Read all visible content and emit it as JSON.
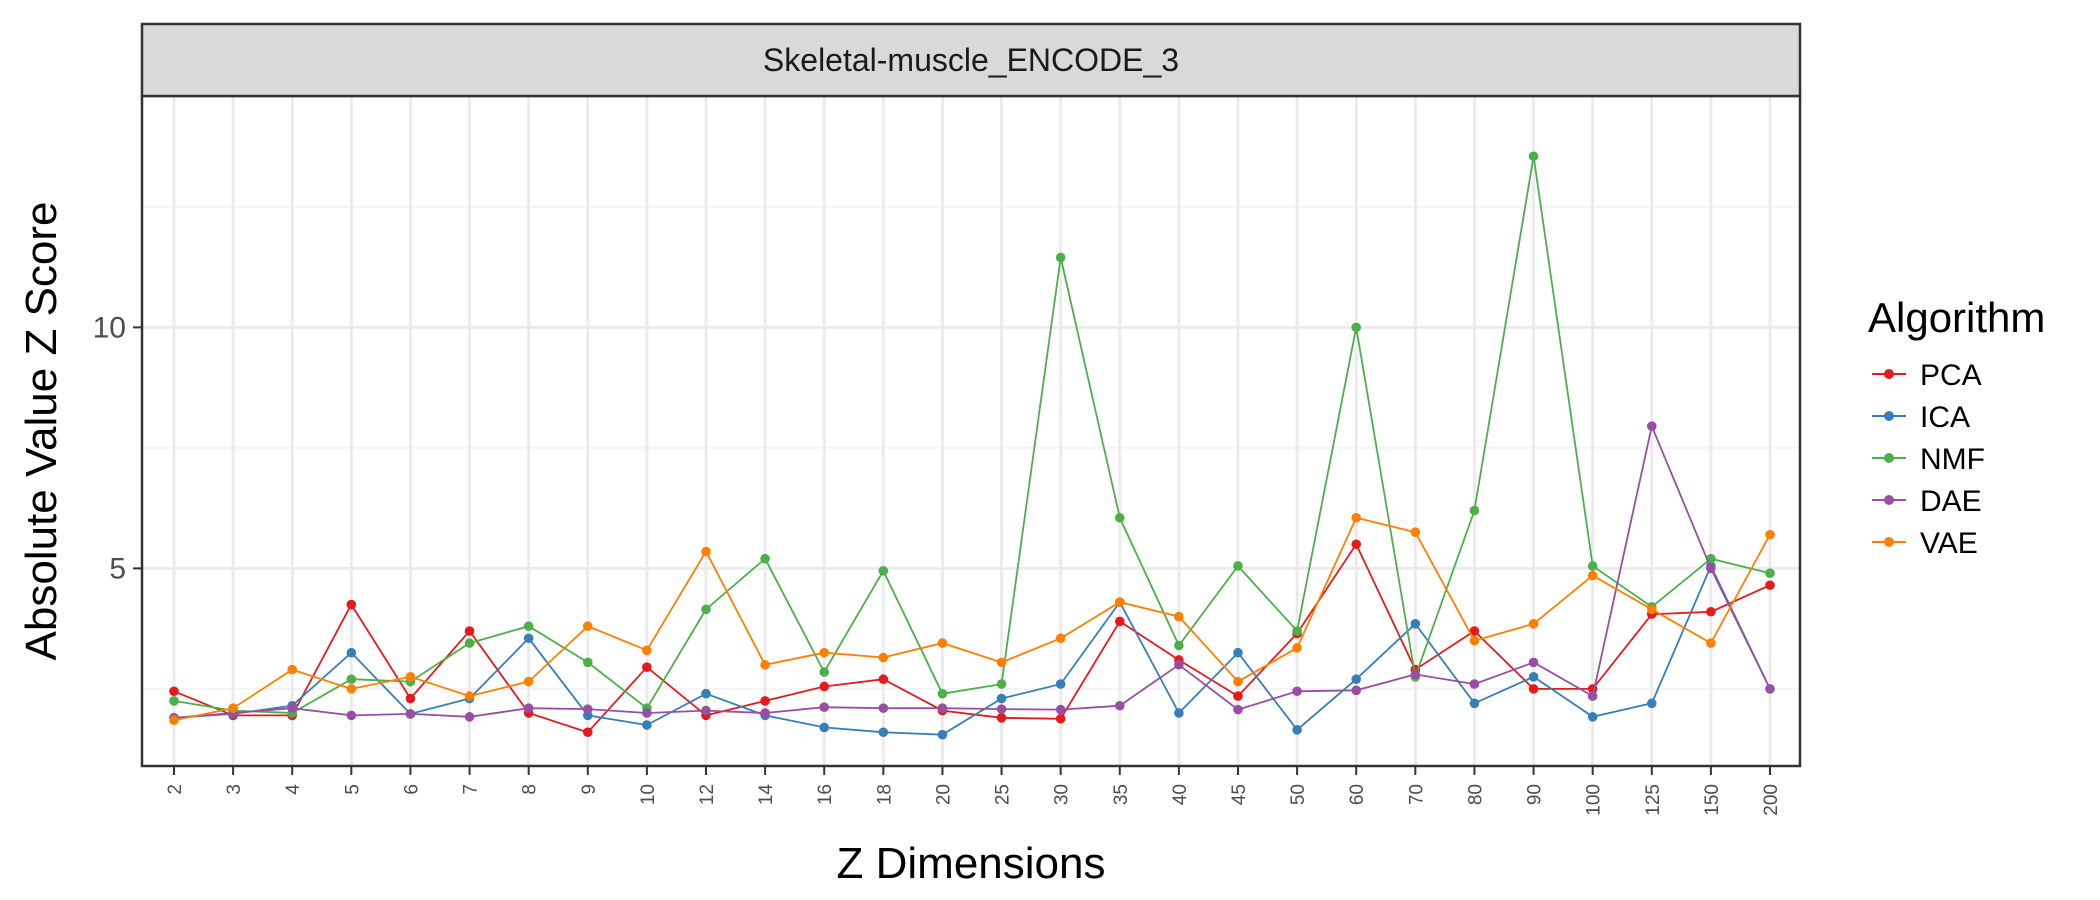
{
  "chart_data": {
    "type": "line",
    "title": "Skeletal-muscle_ENCODE_3",
    "xlabel": "Z Dimensions",
    "ylabel": "Absolute Value Z Score",
    "categories": [
      "2",
      "3",
      "4",
      "5",
      "6",
      "7",
      "8",
      "9",
      "10",
      "12",
      "14",
      "16",
      "18",
      "20",
      "25",
      "30",
      "35",
      "40",
      "45",
      "50",
      "60",
      "70",
      "80",
      "90",
      "100",
      "125",
      "150",
      "200"
    ],
    "ylim": [
      0.9,
      14.8
    ],
    "yticks": [
      5,
      10
    ],
    "legend": {
      "title": "Algorithm",
      "placement": "right"
    },
    "grid": true,
    "series": [
      {
        "name": "PCA",
        "color": "#e41a1c",
        "values": [
          2.45,
          1.95,
          1.95,
          4.25,
          2.3,
          3.7,
          2.0,
          1.6,
          2.95,
          1.95,
          2.25,
          2.55,
          2.7,
          2.05,
          1.9,
          1.88,
          3.9,
          3.1,
          2.35,
          3.65,
          5.5,
          2.9,
          3.7,
          2.5,
          2.5,
          4.05,
          4.1,
          4.65
        ]
      },
      {
        "name": "ICA",
        "color": "#377eb8",
        "values": [
          1.9,
          1.98,
          2.15,
          3.25,
          1.98,
          2.3,
          3.55,
          1.95,
          1.75,
          2.4,
          1.95,
          1.7,
          1.6,
          1.55,
          2.3,
          2.6,
          4.3,
          2.0,
          3.25,
          1.65,
          2.7,
          3.85,
          2.2,
          2.75,
          1.92,
          2.2,
          5.05,
          2.5
        ]
      },
      {
        "name": "NMF",
        "color": "#4daf4a",
        "values": [
          2.25,
          2.05,
          2.0,
          2.7,
          2.65,
          3.45,
          3.8,
          3.05,
          2.1,
          4.15,
          5.2,
          2.85,
          4.95,
          2.4,
          2.6,
          11.45,
          6.05,
          3.4,
          5.05,
          3.7,
          10.0,
          2.75,
          6.2,
          13.55,
          5.05,
          4.2,
          5.2,
          4.9
        ]
      },
      {
        "name": "DAE",
        "color": "#984ea3",
        "values": [
          1.9,
          2.0,
          2.1,
          1.95,
          1.98,
          1.92,
          2.1,
          2.08,
          2.0,
          2.05,
          2.0,
          2.12,
          2.1,
          2.1,
          2.08,
          2.07,
          2.15,
          3.0,
          2.07,
          2.45,
          2.47,
          2.8,
          2.6,
          3.05,
          2.35,
          7.95,
          5.0,
          2.5
        ]
      },
      {
        "name": "VAE",
        "color": "#ff7f00",
        "values": [
          1.85,
          2.1,
          2.9,
          2.5,
          2.75,
          2.35,
          2.65,
          3.8,
          3.3,
          5.35,
          3.0,
          3.25,
          3.15,
          3.45,
          3.05,
          3.55,
          4.3,
          4.0,
          2.65,
          3.35,
          6.05,
          5.75,
          3.5,
          3.85,
          4.85,
          4.15,
          3.45,
          5.7
        ]
      }
    ]
  }
}
